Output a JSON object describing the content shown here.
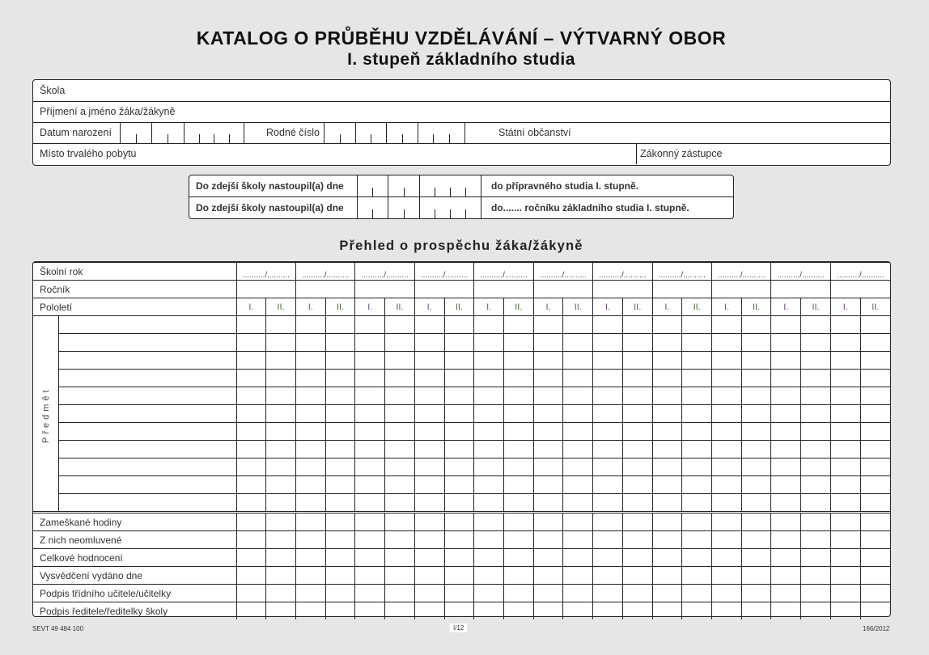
{
  "title": "KATALOG O PRŮBĚHU VZDĚLÁVÁNÍ – VÝTVARNÝ OBOR",
  "subtitle": "I. stupeň základního studia",
  "info": {
    "school": "Škola",
    "name": "Příjmení a jméno žáka/žákyně",
    "birth_date": "Datum narození",
    "birth_number": "Rodné číslo",
    "citizenship": "Státní občanství",
    "residence": "Místo trvalého pobytu",
    "guardian": "Zákonný zástupce"
  },
  "entry": {
    "row1_label": "Do zdejší školy nastoupil(a) dne",
    "row1_suffix": "do přípravného studia I. stupně.",
    "row2_label": "Do zdejší školy nastoupil(a) dne",
    "row2_suffix": "do....... ročníku základního studia I. stupně."
  },
  "overview_title": "Přehled o prospěchu žáka/žákyně",
  "grid": {
    "school_year": "Školní rok",
    "year_placeholder": "........../..........",
    "grade": "Ročník",
    "semester": "Pololetí",
    "semesters": [
      "I.",
      "II."
    ],
    "year_count": 11,
    "subject_label": "Předmět",
    "subject_rows": 11,
    "bottom_rows": [
      "Zameškané hodiny",
      "Z nich neomluvené",
      "Celkové hodnocení",
      "Vysvědčení vydáno dne",
      "Podpis třídního učitele/učitelky",
      "Podpis ředitele/ředitelky školy"
    ]
  },
  "footer": {
    "left": "SEVT  49 484 100",
    "center": "I/12",
    "right": "166/2012"
  }
}
